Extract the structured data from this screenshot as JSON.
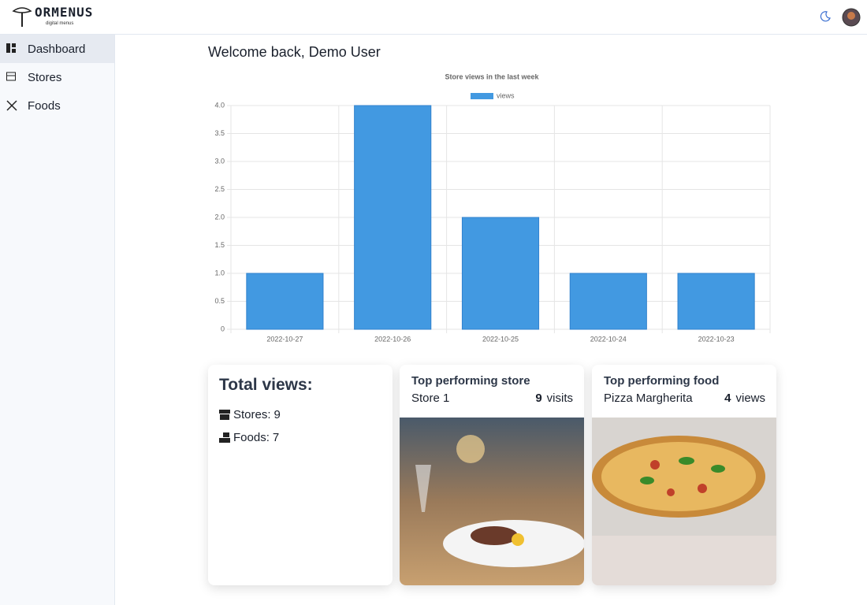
{
  "header": {
    "logo": "ORMENUS",
    "tagline": "digital menus"
  },
  "sidebar": {
    "items": [
      "Dashboard",
      "Stores",
      "Foods"
    ]
  },
  "welcome": "Welcome back, Demo User",
  "chart_data": {
    "type": "bar",
    "title": "Store views in the last week",
    "legend": "views",
    "categories": [
      "2022-10-27",
      "2022-10-26",
      "2022-10-25",
      "2022-10-24",
      "2022-10-23"
    ],
    "series": [
      {
        "name": "views",
        "color": "#4299e1",
        "values": [
          1,
          4,
          2,
          1,
          1
        ]
      }
    ],
    "ylim": [
      0,
      4
    ],
    "yticks": [
      0,
      0.5,
      {
        "value": 1,
        "label": "1.0"
      },
      1.5,
      {
        "value": 2,
        "label": "2.0"
      },
      2.5,
      {
        "value": 3,
        "label": "3.0"
      },
      3.5,
      {
        "value": 4,
        "label": "4.0"
      }
    ],
    "grid": true
  },
  "cards": {
    "total": {
      "title": "Total views:",
      "stats": [
        {
          "label": "Stores:",
          "value": 9
        },
        {
          "label": "Foods:",
          "value": 7
        }
      ]
    },
    "store": {
      "title": "Top performing store",
      "name": "Store 1",
      "count": 9,
      "unit": "visits"
    },
    "food": {
      "title": "Top performing food",
      "name": "Pizza Margherita",
      "count": 4,
      "unit": "views"
    }
  }
}
